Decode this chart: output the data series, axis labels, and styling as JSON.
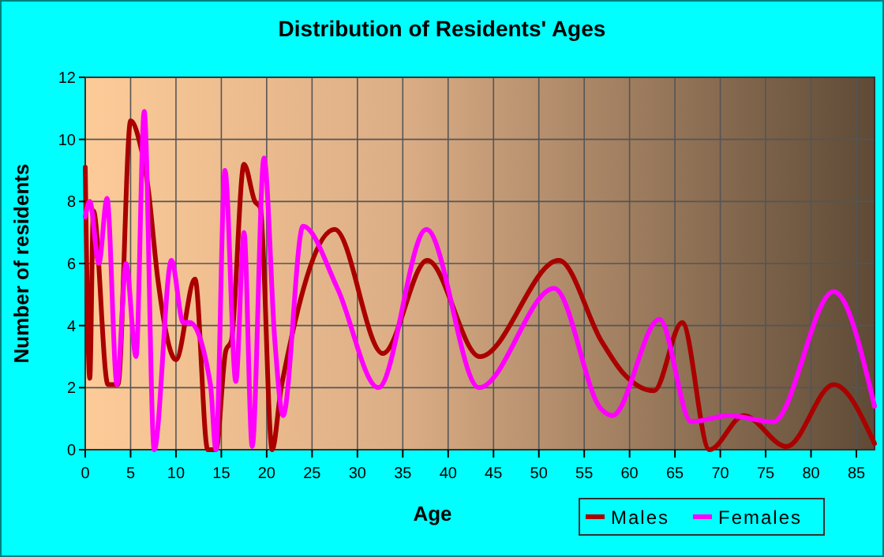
{
  "chart_data": {
    "type": "line",
    "title": "Distribution of Residents' Ages",
    "xlabel": "Age",
    "ylabel": "Number of residents",
    "xlim": [
      0,
      87
    ],
    "xticks": [
      0,
      5,
      10,
      15,
      20,
      25,
      30,
      35,
      40,
      45,
      50,
      55,
      60,
      65,
      70,
      75,
      80,
      85
    ],
    "ylim": [
      0,
      12
    ],
    "yticks": [
      0,
      2,
      4,
      6,
      8,
      10,
      12
    ],
    "grid": true,
    "legend": "bottom right",
    "marker": "none",
    "line_style": "solid",
    "series": [
      {
        "name": "Males",
        "color": "#aa0000",
        "x": [
          0,
          0.5,
          0.9,
          2.5,
          3.6,
          5.0,
          6.0,
          6.9,
          8.0,
          10.0,
          12.1,
          13.5,
          14.4,
          15.5,
          16.1,
          17.5,
          18.7,
          19.3,
          20.6,
          21.6,
          22.0,
          27.5,
          32.8,
          37.7,
          43.5,
          52.2,
          56.9,
          59.2,
          62.7,
          65.8,
          68.8,
          72.6,
          77.3,
          82.5,
          87
        ],
        "values": [
          9.1,
          2.3,
          7.7,
          2.1,
          2.1,
          10.6,
          9.9,
          8.5,
          5.5,
          2.9,
          5.5,
          0,
          0,
          3.2,
          3.5,
          9.2,
          8.0,
          7.8,
          0,
          2.0,
          2.6,
          7.1,
          3.1,
          6.1,
          3.0,
          6.1,
          3.5,
          2.5,
          1.9,
          4.1,
          0,
          1.1,
          0.1,
          2.1,
          0.2
        ]
      },
      {
        "name": "Females",
        "color": "#ff00ff",
        "x": [
          0,
          0.5,
          1.5,
          2.4,
          3.5,
          4.5,
          5.6,
          6.5,
          7.6,
          9.5,
          10.8,
          11.5,
          13.8,
          14.4,
          15.4,
          16.6,
          17.5,
          18.4,
          19.7,
          20.9,
          21.8,
          24.0,
          27.8,
          32.3,
          37.6,
          43.4,
          51.7,
          56.9,
          58.1,
          63.3,
          66.8,
          70.9,
          75.8,
          82.5,
          87
        ],
        "values": [
          7.5,
          8.0,
          6.0,
          8.1,
          2.1,
          6.0,
          3.0,
          10.9,
          0,
          6.1,
          4.1,
          4.1,
          2.1,
          0,
          9.0,
          2.2,
          7.0,
          0.1,
          9.4,
          3.5,
          1.1,
          7.2,
          5.2,
          2.0,
          7.1,
          2.0,
          5.2,
          1.3,
          1.1,
          4.2,
          0.9,
          1.1,
          0.9,
          5.1,
          1.4
        ]
      }
    ]
  }
}
